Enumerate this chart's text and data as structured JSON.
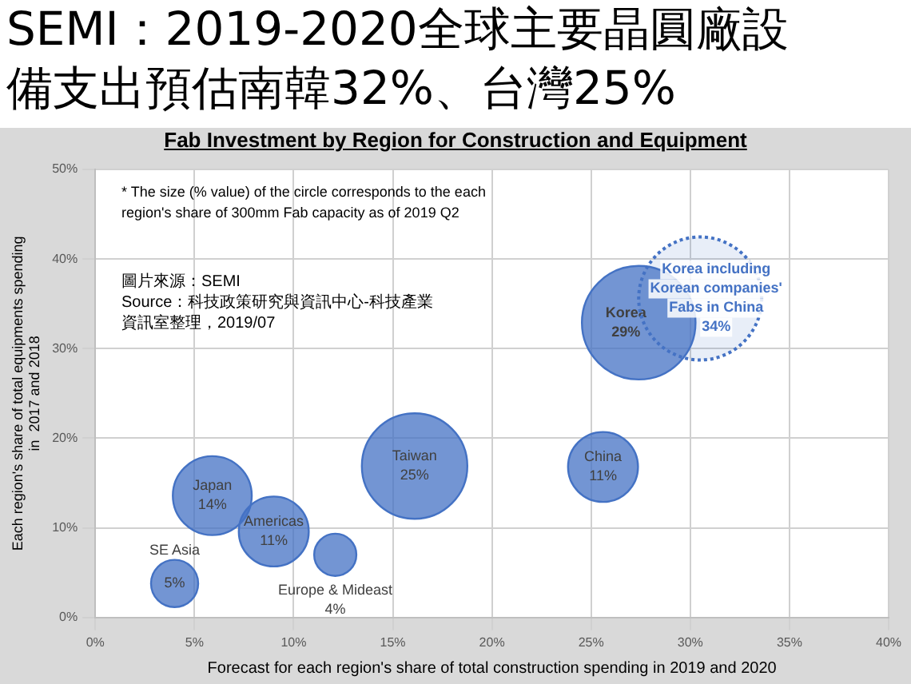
{
  "chart_data": {
    "type": "bubble",
    "title": "SEMI：2019-2020全球主要晶圓廠設備支出預估南韓32%、台灣25%",
    "subtitle": "Fab Investment by Region for Construction and Equipment",
    "xlabel": "Forecast for each region's share of total construction spending in 2019 and 2020",
    "ylabel": "Each region's share of total equipments spending in  2017 and 2018",
    "annotations": [
      "* The size (% value) of the circle corresponds to the each region's share of 300mm Fab capacity as of 2019 Q2",
      "圖片來源：SEMI",
      "Source：科技政策研究與資訊中心-科技產業資訊室整理，2019/07"
    ],
    "xlim": [
      0,
      40
    ],
    "xticks": [
      {
        "value": 0,
        "label": "0%"
      },
      {
        "value": 5,
        "label": "5%"
      },
      {
        "value": 10,
        "label": "10%"
      },
      {
        "value": 15,
        "label": "15%"
      },
      {
        "value": 20,
        "label": "20%"
      },
      {
        "value": 25,
        "label": "25%"
      },
      {
        "value": 30,
        "label": "30%"
      },
      {
        "value": 35,
        "label": "35%"
      },
      {
        "value": 40,
        "label": "40%"
      }
    ],
    "ylim": [
      0,
      50
    ],
    "yticks": [
      {
        "value": 0,
        "label": "0%"
      },
      {
        "value": 10,
        "label": "10%"
      },
      {
        "value": 20,
        "label": "20%"
      },
      {
        "value": 30,
        "label": "30%"
      },
      {
        "value": 40,
        "label": "40%"
      },
      {
        "value": 50,
        "label": "50%"
      }
    ],
    "grid": true,
    "legend": false,
    "series": [
      {
        "name": "SE Asia",
        "color": "#4472c4",
        "x": [
          4
        ],
        "values": [
          3.8
        ],
        "sizes": [
          5
        ],
        "value_labels": [
          "5%"
        ]
      },
      {
        "name": "Japan",
        "color": "#4472c4",
        "x": [
          5.9
        ],
        "values": [
          13.6
        ],
        "sizes": [
          14
        ],
        "value_labels": [
          "14%"
        ]
      },
      {
        "name": "Americas",
        "color": "#4472c4",
        "x": [
          9
        ],
        "values": [
          9.6
        ],
        "sizes": [
          11
        ],
        "value_labels": [
          "11%"
        ]
      },
      {
        "name": "Europe & Mideast",
        "color": "#4472c4",
        "x": [
          12.1
        ],
        "values": [
          7
        ],
        "sizes": [
          4
        ],
        "value_labels": [
          "4%"
        ]
      },
      {
        "name": "Taiwan",
        "color": "#4472c4",
        "x": [
          16.1
        ],
        "values": [
          16.9
        ],
        "sizes": [
          25
        ],
        "value_labels": [
          "25%"
        ]
      },
      {
        "name": "China",
        "color": "#4472c4",
        "x": [
          25.6
        ],
        "values": [
          16.8
        ],
        "sizes": [
          11
        ],
        "value_labels": [
          "11%"
        ]
      },
      {
        "name": "Korea",
        "color": "#4472c4",
        "x": [
          27.4
        ],
        "values": [
          32.9
        ],
        "sizes": [
          29
        ],
        "value_labels": [
          "29%"
        ]
      },
      {
        "name": "Korea including Korean companies' Fabs in China",
        "color": "#4472c4",
        "line_style": "dotted",
        "x": [
          30.5
        ],
        "values": [
          35.6
        ],
        "sizes": [
          34
        ],
        "value_labels": [
          "34%"
        ]
      }
    ]
  }
}
